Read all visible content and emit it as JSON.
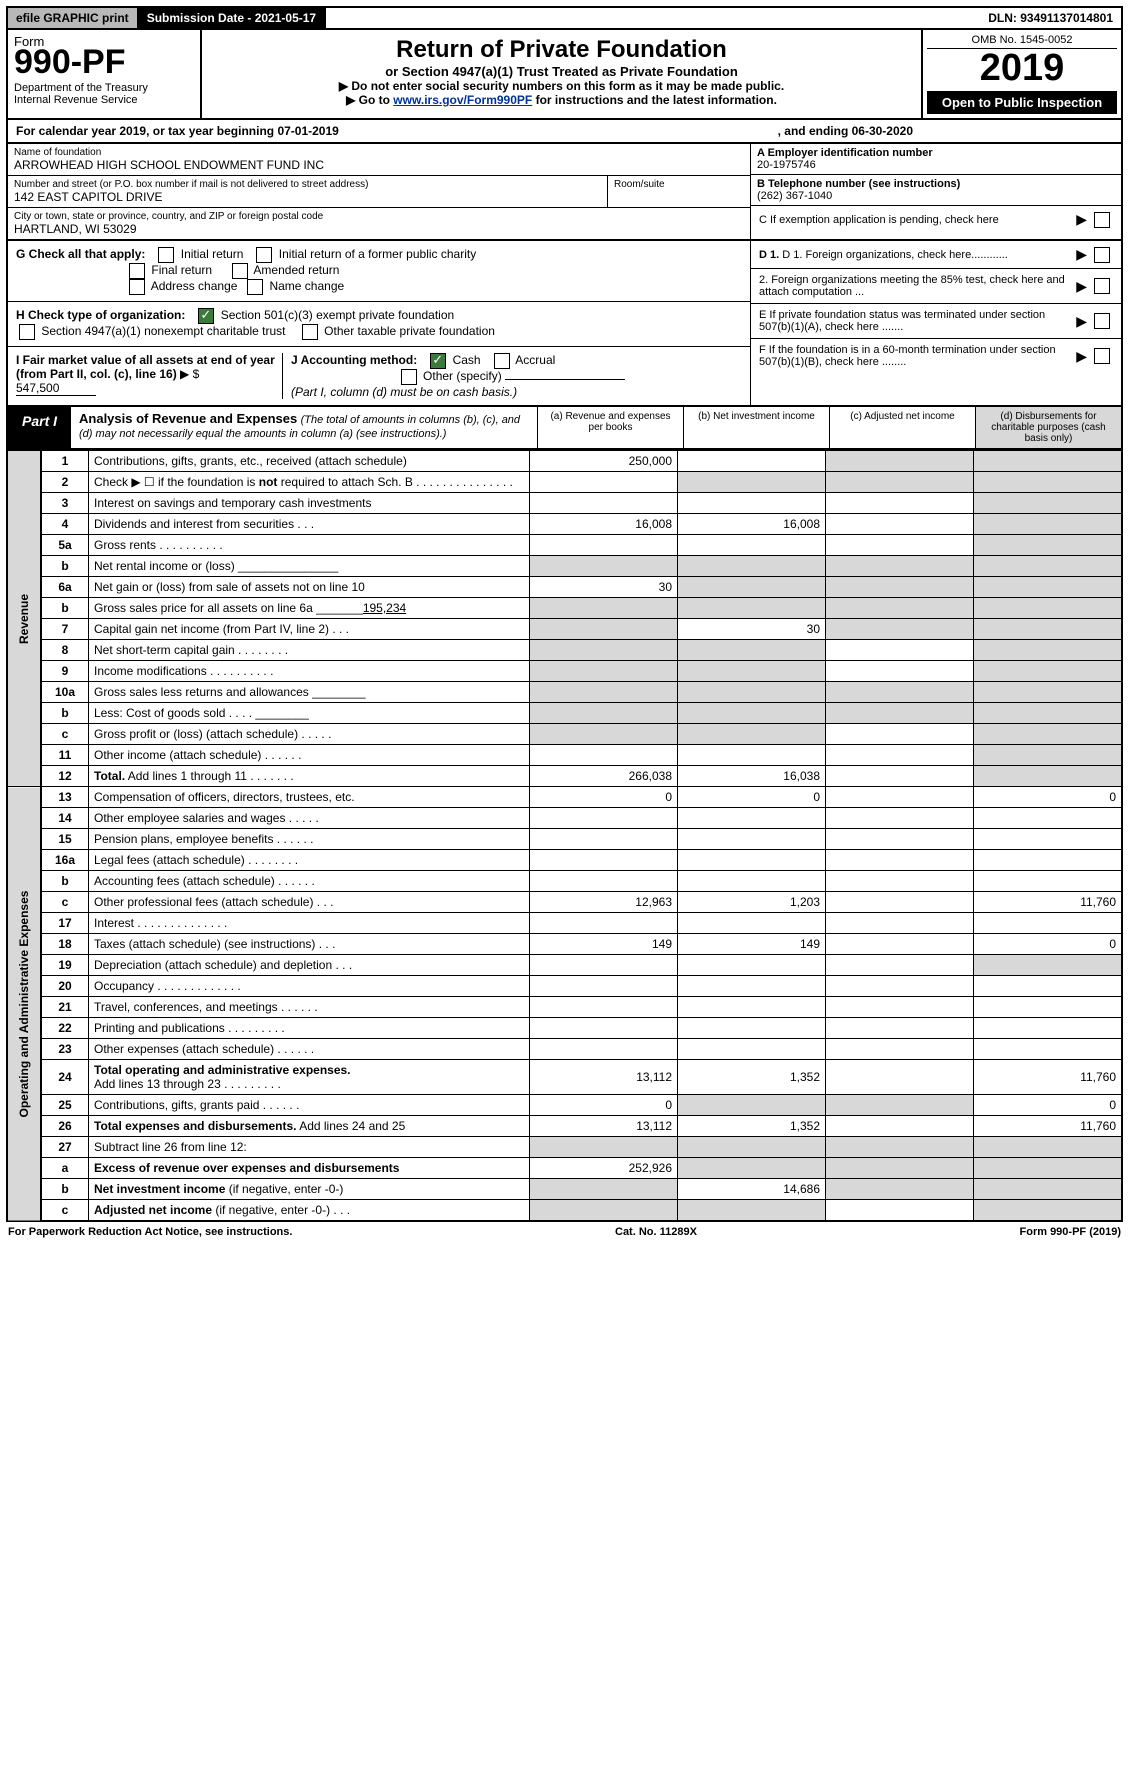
{
  "topbar": {
    "efile": "efile GRAPHIC print",
    "subdate": "Submission Date - 2021-05-17",
    "dln": "DLN: 93491137014801"
  },
  "header": {
    "form_word": "Form",
    "form_no": "990-PF",
    "dept": "Department of the Treasury",
    "irs": "Internal Revenue Service",
    "title": "Return of Private Foundation",
    "subtitle": "or Section 4947(a)(1) Trust Treated as Private Foundation",
    "instr1": "▶ Do not enter social security numbers on this form as it may be made public.",
    "instr2_pre": "▶ Go to ",
    "instr2_link": "www.irs.gov/Form990PF",
    "instr2_post": " for instructions and the latest information.",
    "omb": "OMB No. 1545-0052",
    "year": "2019",
    "open": "Open to Public Inspection"
  },
  "calyear": {
    "text_a": "For calendar year 2019, or tax year beginning 07-01-2019",
    "text_b": ", and ending 06-30-2020"
  },
  "info": {
    "name_label": "Name of foundation",
    "name": "ARROWHEAD HIGH SCHOOL ENDOWMENT FUND INC",
    "addr_label": "Number and street (or P.O. box number if mail is not delivered to street address)",
    "addr": "142 EAST CAPITOL DRIVE",
    "room_label": "Room/suite",
    "city_label": "City or town, state or province, country, and ZIP or foreign postal code",
    "city": "HARTLAND, WI  53029",
    "ein_label": "A Employer identification number",
    "ein": "20-1975746",
    "tel_label": "B Telephone number (see instructions)",
    "tel": "(262) 367-1040",
    "c_label": "C If exemption application is pending, check here"
  },
  "checks": {
    "g_label": "G Check all that apply:",
    "g_opts": [
      "Initial return",
      "Initial return of a former public charity",
      "Final return",
      "Amended return",
      "Address change",
      "Name change"
    ],
    "h_label": "H Check type of organization:",
    "h1": "Section 501(c)(3) exempt private foundation",
    "h2": "Section 4947(a)(1) nonexempt charitable trust",
    "h3": "Other taxable private foundation",
    "i_label": "I Fair market value of all assets at end of year (from Part II, col. (c), line 16)",
    "i_prefix": "▶ $",
    "i_val": "547,500",
    "j_label": "J Accounting method:",
    "j_cash": "Cash",
    "j_accrual": "Accrual",
    "j_other": "Other (specify)",
    "j_note": "(Part I, column (d) must be on cash basis.)",
    "d1": "D 1. Foreign organizations, check here............",
    "d2": "2. Foreign organizations meeting the 85% test, check here and attach computation ...",
    "e": "E  If private foundation status was terminated under section 507(b)(1)(A), check here .......",
    "f": "F  If the foundation is in a 60-month termination under section 507(b)(1)(B), check here ........"
  },
  "part1": {
    "label": "Part I",
    "title": "Analysis of Revenue and Expenses",
    "sub": "(The total of amounts in columns (b), (c), and (d) may not necessarily equal the amounts in column (a) (see instructions).)",
    "cols": {
      "a": "(a)   Revenue and expenses per books",
      "b": "(b)  Net investment income",
      "c": "(c)  Adjusted net income",
      "d": "(d)  Disbursements for charitable purposes (cash basis only)"
    }
  },
  "sections": {
    "revenue": "Revenue",
    "expenses": "Operating and Administrative Expenses"
  },
  "rows": [
    {
      "n": "1",
      "d": "shade",
      "a": "250,000",
      "b": "",
      "c": "shade"
    },
    {
      "n": "2",
      "d": "shade",
      "a": "",
      "b": "shade",
      "c": "shade",
      "dots": true
    },
    {
      "n": "3",
      "d": "shade",
      "a": "",
      "b": "",
      "c": ""
    },
    {
      "n": "4",
      "d": "shade",
      "a": "16,008",
      "b": "16,008",
      "c": "",
      "dots": true
    },
    {
      "n": "5a",
      "d": "shade",
      "a": "",
      "b": "",
      "c": "",
      "dots": true
    },
    {
      "n": "b",
      "d": "shade",
      "a": "shade",
      "b": "shade",
      "c": "shade"
    },
    {
      "n": "6a",
      "d": "shade",
      "a": "30",
      "b": "shade",
      "c": "shade"
    },
    {
      "n": "b",
      "d": "shade",
      "a": "shade",
      "b": "shade",
      "c": "shade"
    },
    {
      "n": "7",
      "d": "shade",
      "a": "shade",
      "b": "30",
      "c": "shade",
      "dots": true
    },
    {
      "n": "8",
      "d": "shade",
      "a": "shade",
      "b": "shade",
      "c": "",
      "dots": true
    },
    {
      "n": "9",
      "d": "shade",
      "a": "shade",
      "b": "shade",
      "c": "",
      "dots": true
    },
    {
      "n": "10a",
      "d": "shade",
      "a": "shade",
      "b": "shade",
      "c": "shade"
    },
    {
      "n": "b",
      "d": "shade",
      "a": "shade",
      "b": "shade",
      "c": "shade"
    },
    {
      "n": "c",
      "d": "shade",
      "a": "shade",
      "b": "shade",
      "c": "",
      "dots": true
    },
    {
      "n": "11",
      "d": "shade",
      "a": "",
      "b": "",
      "c": "",
      "dots": true
    },
    {
      "n": "12",
      "d": "shade",
      "a": "266,038",
      "b": "16,038",
      "c": "",
      "bold": true,
      "dots": true
    }
  ],
  "exp_rows": [
    {
      "n": "13",
      "d": "0",
      "a": "0",
      "b": "0",
      "c": ""
    },
    {
      "n": "14",
      "d": "",
      "a": "",
      "b": "",
      "c": "",
      "dots": true
    },
    {
      "n": "15",
      "d": "",
      "a": "",
      "b": "",
      "c": "",
      "dots": true
    },
    {
      "n": "16a",
      "d": "",
      "a": "",
      "b": "",
      "c": "",
      "dots": true
    },
    {
      "n": "b",
      "d": "",
      "a": "",
      "b": "",
      "c": "",
      "dots": true
    },
    {
      "n": "c",
      "d": "11,760",
      "a": "12,963",
      "b": "1,203",
      "c": "",
      "dots": true
    },
    {
      "n": "17",
      "d": "",
      "a": "",
      "b": "",
      "c": "",
      "dots": true
    },
    {
      "n": "18",
      "d": "0",
      "a": "149",
      "b": "149",
      "c": "",
      "dots": true
    },
    {
      "n": "19",
      "d": "shade",
      "a": "",
      "b": "",
      "c": "",
      "dots": true
    },
    {
      "n": "20",
      "d": "",
      "a": "",
      "b": "",
      "c": "",
      "dots": true
    },
    {
      "n": "21",
      "d": "",
      "a": "",
      "b": "",
      "c": "",
      "dots": true
    },
    {
      "n": "22",
      "d": "",
      "a": "",
      "b": "",
      "c": "",
      "dots": true
    },
    {
      "n": "23",
      "d": "",
      "a": "",
      "b": "",
      "c": "",
      "dots": true
    },
    {
      "n": "24",
      "d": "11,760",
      "a": "13,112",
      "b": "1,352",
      "c": "",
      "bold": true,
      "dots": true
    },
    {
      "n": "25",
      "d": "0",
      "a": "0",
      "b": "shade",
      "c": "shade",
      "dots": true
    },
    {
      "n": "26",
      "d": "11,760",
      "a": "13,112",
      "b": "1,352",
      "c": "",
      "bold": true
    },
    {
      "n": "27",
      "d": "shade",
      "a": "shade",
      "b": "shade",
      "c": "shade"
    },
    {
      "n": "a",
      "d": "shade",
      "a": "252,926",
      "b": "shade",
      "c": "shade",
      "bold": true
    },
    {
      "n": "b",
      "d": "shade",
      "a": "shade",
      "b": "14,686",
      "c": "shade",
      "bold": true
    },
    {
      "n": "c",
      "d": "shade",
      "a": "shade",
      "b": "shade",
      "c": "",
      "bold": true,
      "dots": true
    }
  ],
  "footer": {
    "left": "For Paperwork Reduction Act Notice, see instructions.",
    "mid": "Cat. No. 11289X",
    "right": "Form 990-PF (2019)"
  },
  "colors": {
    "shade": "#d8d8d8",
    "black": "#000000",
    "link": "#003399",
    "check_green": "#3a7a3a"
  }
}
